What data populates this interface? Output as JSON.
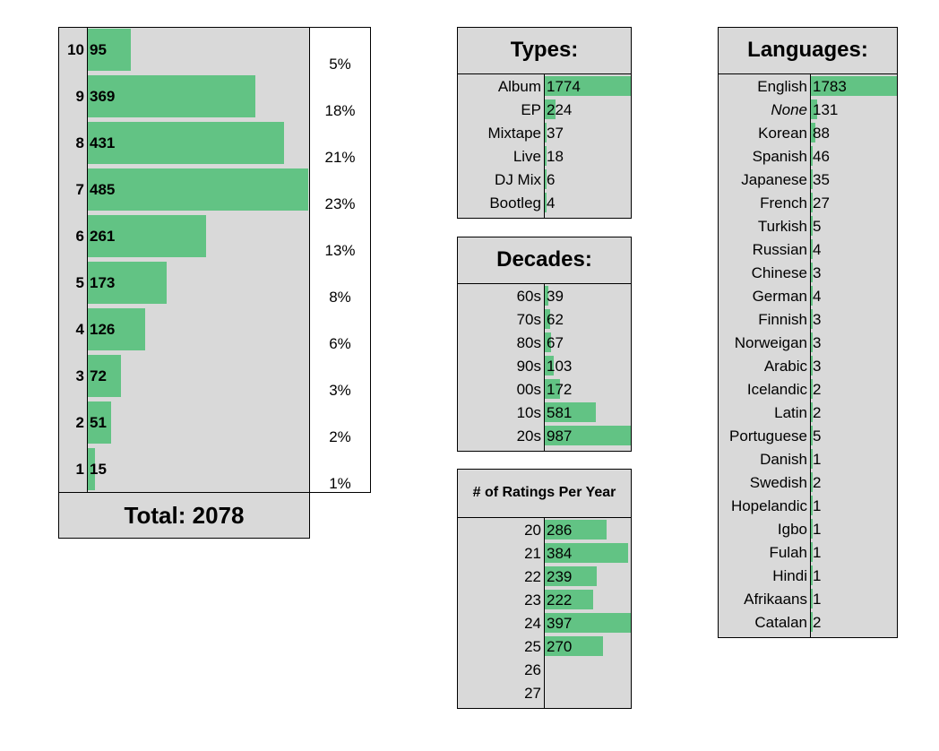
{
  "ratings": {
    "levels": [
      10,
      9,
      8,
      7,
      6,
      5,
      4,
      3,
      2,
      1
    ],
    "counts": [
      95,
      369,
      431,
      485,
      261,
      173,
      126,
      72,
      51,
      15
    ],
    "percents": [
      "5%",
      "18%",
      "21%",
      "23%",
      "13%",
      "8%",
      "6%",
      "3%",
      "2%",
      "1%"
    ],
    "total_label": "Total: 2078"
  },
  "types": {
    "title": "Types:",
    "rows": [
      {
        "label": "Album",
        "value": 1774
      },
      {
        "label": "EP",
        "value": 224
      },
      {
        "label": "Mixtape",
        "value": 37
      },
      {
        "label": "Live",
        "value": 18
      },
      {
        "label": "DJ Mix",
        "value": 6
      },
      {
        "label": "Bootleg",
        "value": 4
      }
    ]
  },
  "decades": {
    "title": "Decades:",
    "rows": [
      {
        "label": "60s",
        "value": 39
      },
      {
        "label": "70s",
        "value": 62
      },
      {
        "label": "80s",
        "value": 67
      },
      {
        "label": "90s",
        "value": 103
      },
      {
        "label": "00s",
        "value": 172
      },
      {
        "label": "10s",
        "value": 581
      },
      {
        "label": "20s",
        "value": 987
      }
    ]
  },
  "per_year": {
    "title": "# of Ratings Per Year",
    "rows": [
      {
        "label": "20",
        "value": 286
      },
      {
        "label": "21",
        "value": 384
      },
      {
        "label": "22",
        "value": 239
      },
      {
        "label": "23",
        "value": 222
      },
      {
        "label": "24",
        "value": 397
      },
      {
        "label": "25",
        "value": 270
      },
      {
        "label": "26",
        "value": null
      },
      {
        "label": "27",
        "value": null
      }
    ]
  },
  "languages": {
    "title": "Languages:",
    "rows": [
      {
        "label": "English",
        "value": 1783
      },
      {
        "label": "None",
        "value": 131,
        "italic": true
      },
      {
        "label": "Korean",
        "value": 88
      },
      {
        "label": "Spanish",
        "value": 46
      },
      {
        "label": "Japanese",
        "value": 35
      },
      {
        "label": "French",
        "value": 27
      },
      {
        "label": "Turkish",
        "value": 5
      },
      {
        "label": "Russian",
        "value": 4
      },
      {
        "label": "Chinese",
        "value": 3
      },
      {
        "label": "German",
        "value": 4
      },
      {
        "label": "Finnish",
        "value": 3
      },
      {
        "label": "Norweigan",
        "value": 3
      },
      {
        "label": "Arabic",
        "value": 3
      },
      {
        "label": "Icelandic",
        "value": 2
      },
      {
        "label": "Latin",
        "value": 2
      },
      {
        "label": "Portuguese",
        "value": 5
      },
      {
        "label": "Danish",
        "value": 1
      },
      {
        "label": "Swedish",
        "value": 2
      },
      {
        "label": "Hopelandic",
        "value": 1
      },
      {
        "label": "Igbo",
        "value": 1
      },
      {
        "label": "Fulah",
        "value": 1
      },
      {
        "label": "Hindi",
        "value": 1
      },
      {
        "label": "Afrikaans",
        "value": 1
      },
      {
        "label": "Catalan",
        "value": 2
      }
    ]
  },
  "colors": {
    "bar": "#62c384",
    "panel": "#d9d9d9",
    "border": "#000000"
  },
  "chart_data": [
    {
      "type": "bar",
      "categories": [
        "10",
        "9",
        "8",
        "7",
        "6",
        "5",
        "4",
        "3",
        "2",
        "1"
      ],
      "values": [
        95,
        369,
        431,
        485,
        261,
        173,
        126,
        72,
        51,
        15
      ],
      "title": "Total: 2078"
    },
    {
      "type": "bar",
      "categories": [
        "Album",
        "EP",
        "Mixtape",
        "Live",
        "DJ Mix",
        "Bootleg"
      ],
      "values": [
        1774,
        224,
        37,
        18,
        6,
        4
      ],
      "title": "Types:"
    },
    {
      "type": "bar",
      "categories": [
        "60s",
        "70s",
        "80s",
        "90s",
        "00s",
        "10s",
        "20s"
      ],
      "values": [
        39,
        62,
        67,
        103,
        172,
        581,
        987
      ],
      "title": "Decades:"
    },
    {
      "type": "bar",
      "categories": [
        "20",
        "21",
        "22",
        "23",
        "24",
        "25",
        "26",
        "27"
      ],
      "values": [
        286,
        384,
        239,
        222,
        397,
        270,
        null,
        null
      ],
      "title": "# of Ratings Per Year"
    },
    {
      "type": "bar",
      "categories": [
        "English",
        "None",
        "Korean",
        "Spanish",
        "Japanese",
        "French",
        "Turkish",
        "Russian",
        "Chinese",
        "German",
        "Finnish",
        "Norweigan",
        "Arabic",
        "Icelandic",
        "Latin",
        "Portuguese",
        "Danish",
        "Swedish",
        "Hopelandic",
        "Igbo",
        "Fulah",
        "Hindi",
        "Afrikaans",
        "Catalan"
      ],
      "values": [
        1783,
        131,
        88,
        46,
        35,
        27,
        5,
        4,
        3,
        4,
        3,
        3,
        3,
        2,
        2,
        5,
        1,
        2,
        1,
        1,
        1,
        1,
        1,
        2
      ],
      "title": "Languages:"
    }
  ]
}
